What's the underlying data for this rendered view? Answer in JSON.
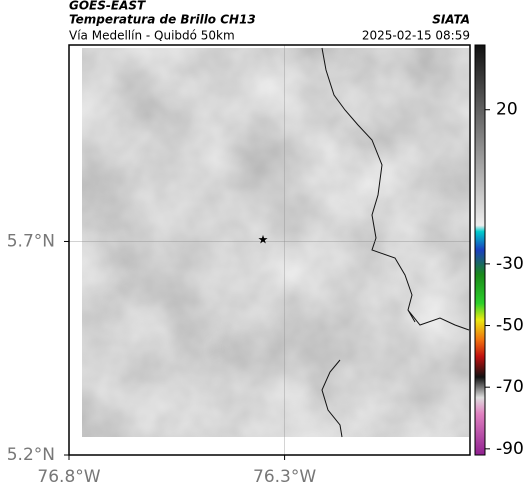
{
  "header": {
    "source": "GOES-EAST",
    "title": "Temperatura de Brillo CH13",
    "subtitle": "Vía Medellín - Quibdó 50km",
    "agency": "SIATA",
    "timestamp": "2025-02-15 08:59"
  },
  "map": {
    "xlim": [
      -76.8,
      -75.87
    ],
    "ylim": [
      5.2,
      6.16
    ],
    "xticks": [
      {
        "value": -76.8,
        "label": "76.8°W"
      },
      {
        "value": -76.3,
        "label": "76.3°W"
      }
    ],
    "yticks": [
      {
        "value": 5.2,
        "label": "5.2°N"
      },
      {
        "value": 5.7,
        "label": "5.7°N"
      }
    ],
    "grid": true
  },
  "colorbar": {
    "lim": [
      -92,
      41
    ],
    "ticks": [
      20,
      -30,
      -50,
      -70,
      -90
    ]
  }
}
